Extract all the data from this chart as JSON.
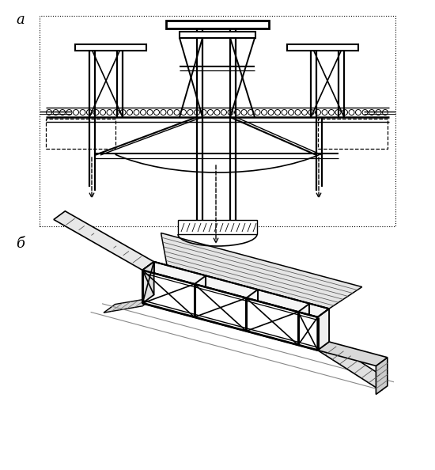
{
  "bg_color": "#ffffff",
  "line_color": "#000000",
  "label_a": "a",
  "label_b": "б",
  "fig_width": 5.5,
  "fig_height": 5.94
}
